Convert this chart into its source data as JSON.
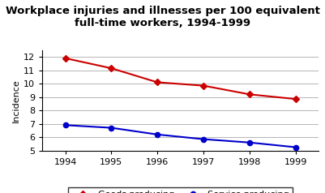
{
  "title": "Workplace injuries and illnesses per 100 equivalent\nfull-time workers, 1994-1999",
  "years": [
    1994,
    1995,
    1996,
    1997,
    1998,
    1999
  ],
  "goods_producing": [
    11.9,
    11.15,
    10.1,
    9.85,
    9.2,
    8.85
  ],
  "service_producing": [
    6.9,
    6.7,
    6.2,
    5.85,
    5.6,
    5.25
  ],
  "goods_color": "#cc0000",
  "service_color": "#0000cc",
  "ylabel": "Incidence",
  "ylim": [
    5,
    12.5
  ],
  "yticks": [
    5,
    6,
    7,
    8,
    9,
    10,
    11,
    12
  ],
  "xlim": [
    1993.5,
    1999.5
  ],
  "bg_color": "#ffffff",
  "plot_bg_color": "#ffffff",
  "title_fontsize": 9.5,
  "axis_fontsize": 8,
  "tick_fontsize": 8,
  "legend_fontsize": 8
}
